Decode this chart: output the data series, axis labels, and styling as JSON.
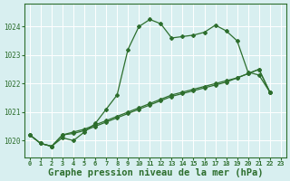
{
  "background_color": "#d8eff0",
  "grid_color": "#ffffff",
  "line_color": "#2d6e2d",
  "title": "Graphe pression niveau de la mer (hPa)",
  "title_fontsize": 7.5,
  "xlabel_ticks": [
    0,
    1,
    2,
    3,
    4,
    5,
    6,
    7,
    8,
    9,
    10,
    11,
    12,
    13,
    14,
    15,
    16,
    17,
    18,
    19,
    20,
    21,
    22,
    23
  ],
  "ylim": [
    1019.4,
    1024.8
  ],
  "yticks": [
    1020,
    1021,
    1022,
    1023,
    1024
  ],
  "series1": [
    1020.2,
    1019.9,
    1019.8,
    1020.1,
    1020.0,
    1020.3,
    1020.6,
    1021.1,
    1021.6,
    1023.2,
    1024.0,
    1024.25,
    1024.1,
    1023.6,
    1023.65,
    1023.7,
    1023.8,
    1024.05,
    1023.85,
    1023.5,
    1022.4,
    1022.3,
    1021.7
  ],
  "series2": [
    1020.2,
    1019.9,
    1019.8,
    1020.2,
    1020.25,
    1020.35,
    1020.5,
    1020.65,
    1020.8,
    1020.95,
    1021.1,
    1021.25,
    1021.4,
    1021.55,
    1021.65,
    1021.75,
    1021.85,
    1021.95,
    1022.05,
    1022.2,
    1022.35,
    1022.5,
    1021.7
  ],
  "series3": [
    1020.2,
    1019.9,
    1019.8,
    1020.2,
    1020.3,
    1020.4,
    1020.55,
    1020.7,
    1020.85,
    1021.0,
    1021.15,
    1021.3,
    1021.45,
    1021.6,
    1021.7,
    1021.8,
    1021.9,
    1022.0,
    1022.1,
    1022.2,
    1022.35,
    1022.5,
    1021.7
  ]
}
